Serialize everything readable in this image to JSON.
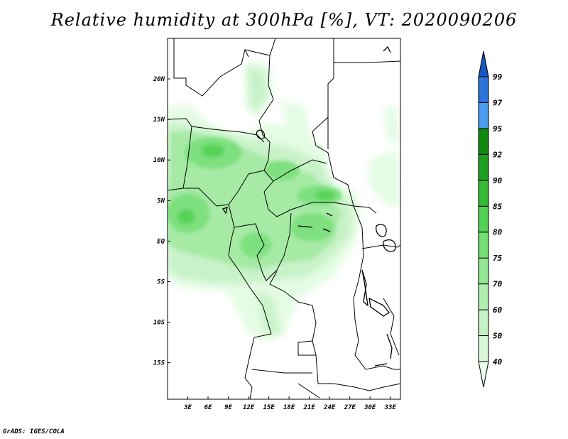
{
  "title": "Relative humidity at 300hPa [%], VT: 2020090206",
  "credit": "GrADS: IGES/COLA",
  "map": {
    "lat_range": [
      -19.5,
      25
    ],
    "lon_range": [
      0,
      34.5
    ],
    "lat_ticks": [
      {
        "value": 20,
        "label": "20N"
      },
      {
        "value": 15,
        "label": "15N"
      },
      {
        "value": 10,
        "label": "10N"
      },
      {
        "value": 5,
        "label": "5N"
      },
      {
        "value": 0,
        "label": "EQ"
      },
      {
        "value": -5,
        "label": "5S"
      },
      {
        "value": -10,
        "label": "10S"
      },
      {
        "value": -15,
        "label": "15S"
      }
    ],
    "lon_ticks": [
      {
        "value": 3,
        "label": "3E"
      },
      {
        "value": 6,
        "label": "6E"
      },
      {
        "value": 9,
        "label": "9E"
      },
      {
        "value": 12,
        "label": "12E"
      },
      {
        "value": 15,
        "label": "15E"
      },
      {
        "value": 18,
        "label": "18E"
      },
      {
        "value": 21,
        "label": "21E"
      },
      {
        "value": 24,
        "label": "24E"
      },
      {
        "value": 27,
        "label": "27E"
      },
      {
        "value": 30,
        "label": "30E"
      },
      {
        "value": 33,
        "label": "33E"
      }
    ]
  },
  "colorbar": {
    "labels": [
      "40",
      "50",
      "60",
      "70",
      "75",
      "80",
      "85",
      "90",
      "92",
      "95",
      "97",
      "99"
    ],
    "colors": [
      "#ebffeb",
      "#d8f8d8",
      "#c4f2c4",
      "#aeeeae",
      "#92e892",
      "#74e074",
      "#52d252",
      "#36bb36",
      "#1e9e1e",
      "#0f8a0f",
      "#4a9af0",
      "#2a74dc",
      "#1a56c2"
    ]
  }
}
